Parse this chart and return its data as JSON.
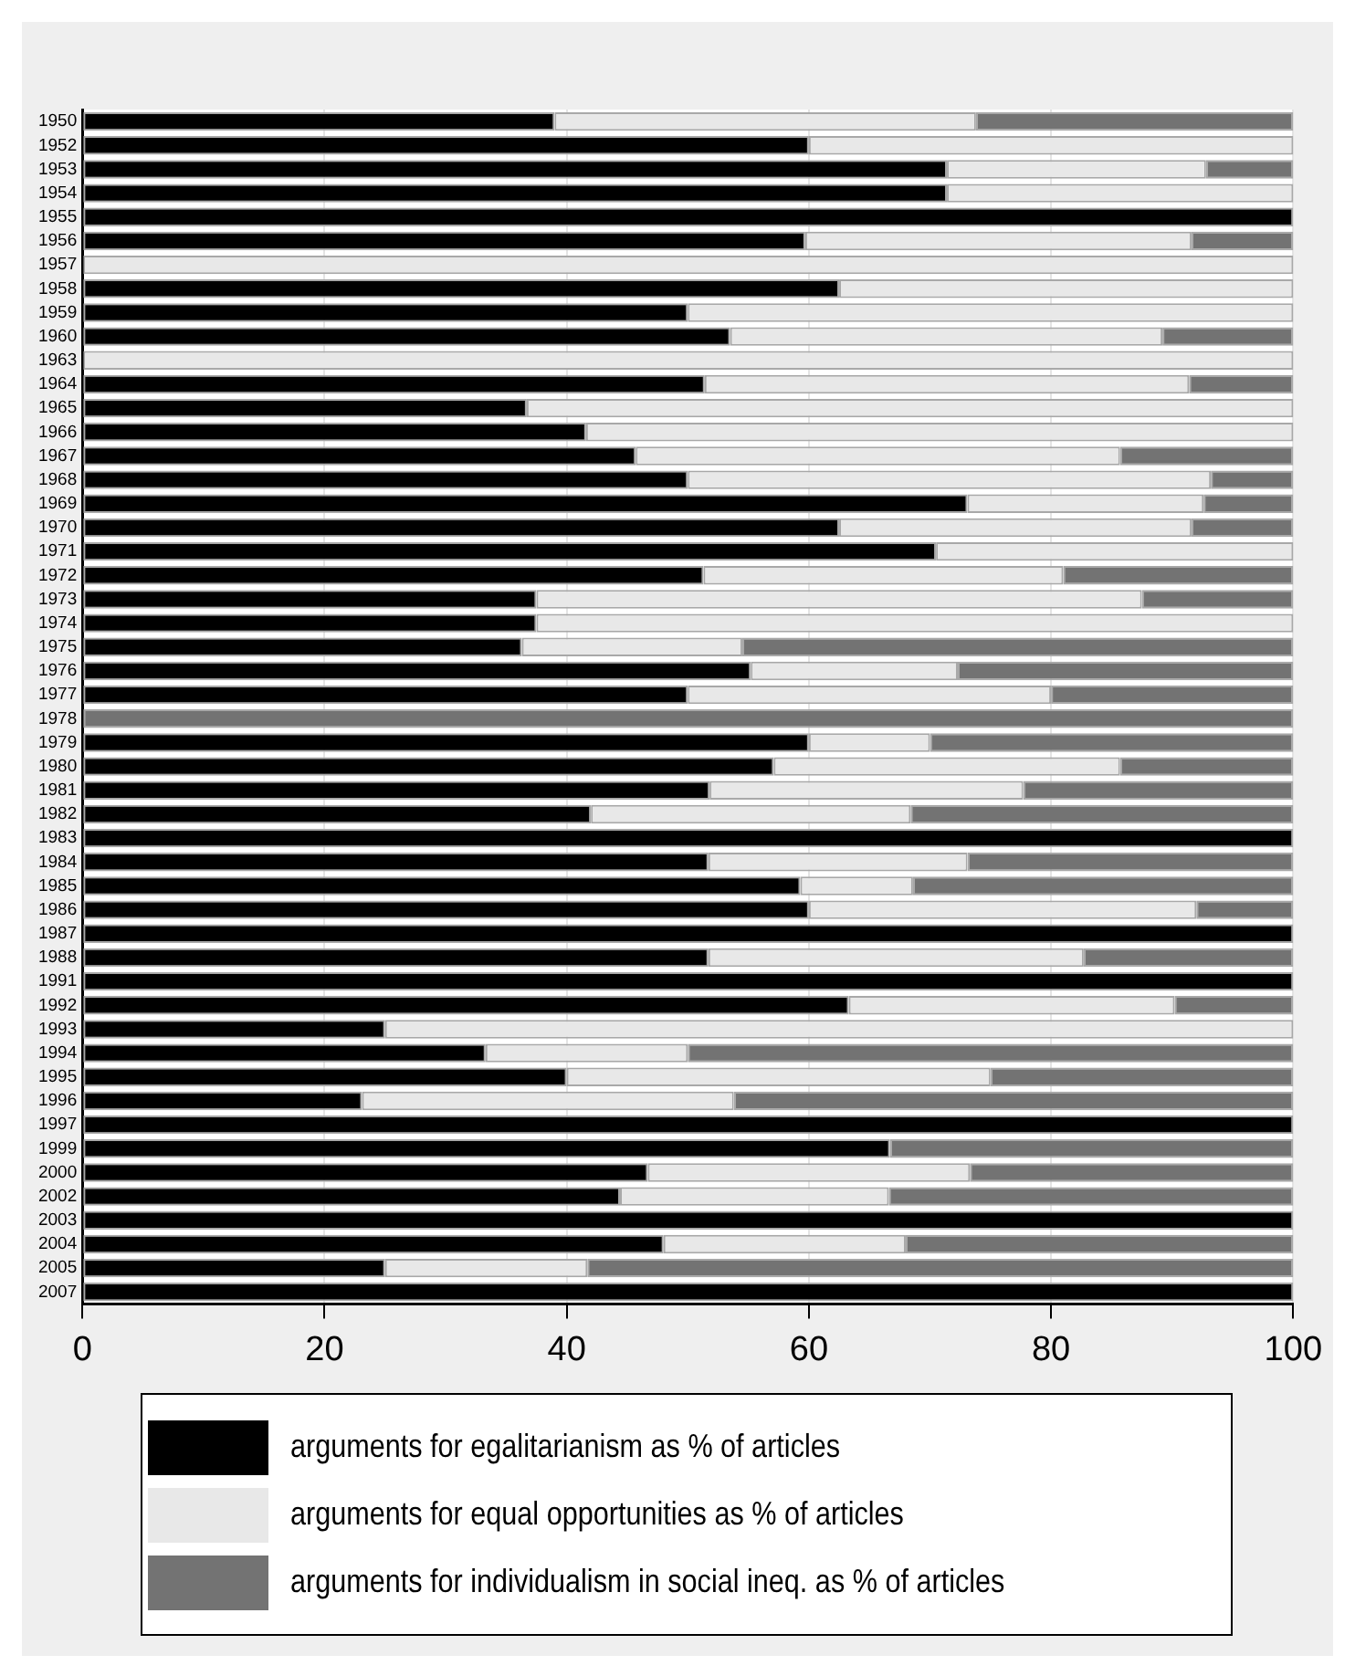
{
  "chart_data": {
    "type": "bar",
    "orientation": "horizontal",
    "stacked": true,
    "grid": "x",
    "legend": "bottom",
    "categories": [
      "1950",
      "1952",
      "1953",
      "1954",
      "1955",
      "1956",
      "1957",
      "1958",
      "1959",
      "1960",
      "1963",
      "1964",
      "1965",
      "1966",
      "1967",
      "1968",
      "1969",
      "1970",
      "1971",
      "1972",
      "1973",
      "1974",
      "1975",
      "1976",
      "1977",
      "1978",
      "1979",
      "1980",
      "1981",
      "1982",
      "1983",
      "1984",
      "1985",
      "1986",
      "1987",
      "1988",
      "1991",
      "1992",
      "1993",
      "1994",
      "1995",
      "1996",
      "1997",
      "1999",
      "2000",
      "2002",
      "2003",
      "2004",
      "2005",
      "2007"
    ],
    "xlim": [
      0,
      100
    ],
    "xticks": [
      0,
      20,
      40,
      60,
      80,
      100
    ],
    "series": [
      {
        "name": "arguments for egalitarianism as % of articles",
        "color": "#000000",
        "values": [
          39,
          60,
          71.4,
          71.4,
          100,
          59.7,
          0,
          62.5,
          50,
          53.5,
          0,
          51.4,
          36.7,
          41.6,
          45.7,
          50,
          73.1,
          62.5,
          70.5,
          51.3,
          37.5,
          37.5,
          36.3,
          55.2,
          50,
          0,
          60,
          57.1,
          51.8,
          42,
          100,
          51.7,
          59.3,
          60,
          100,
          51.7,
          100,
          63.3,
          25,
          33.3,
          40,
          23.1,
          100,
          66.7,
          46.7,
          44.4,
          100,
          48,
          25,
          100
        ]
      },
      {
        "name": "arguments for equal opportunities as % of articles",
        "color": "#e8e8e8",
        "values": [
          34.8,
          40,
          21.4,
          28.6,
          0,
          31.9,
          100,
          37.5,
          50,
          35.7,
          100,
          40,
          63.3,
          58.4,
          40,
          43.2,
          19.5,
          29.1,
          29.5,
          29.7,
          50,
          62.5,
          18.2,
          17.1,
          30,
          0,
          10,
          28.6,
          25.9,
          26.4,
          0,
          21.4,
          9.3,
          32,
          0,
          31,
          0,
          26.9,
          75,
          16.7,
          35,
          30.7,
          0,
          0,
          26.6,
          22.2,
          0,
          20,
          16.7,
          0
        ]
      },
      {
        "name": "arguments for individualism in social ineq. as % of articles",
        "color": "#737373",
        "values": [
          26.2,
          0,
          7.2,
          0,
          0,
          8.4,
          0,
          0,
          0,
          10.8,
          0,
          8.6,
          0,
          0,
          14.3,
          6.8,
          7.4,
          8.4,
          0,
          19,
          12.5,
          0,
          45.5,
          27.7,
          20,
          100,
          30,
          14.3,
          22.3,
          31.6,
          0,
          26.9,
          31.4,
          8,
          0,
          17.3,
          0,
          9.8,
          0,
          50,
          25,
          46.2,
          0,
          33.3,
          26.7,
          33.4,
          0,
          32,
          58.3,
          0
        ]
      }
    ]
  }
}
